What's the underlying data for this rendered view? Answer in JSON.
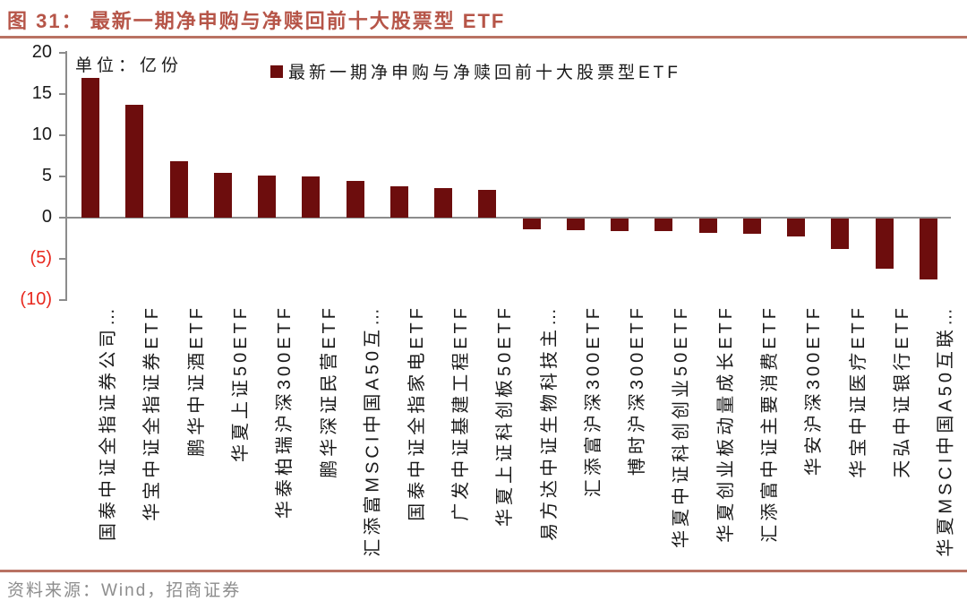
{
  "figure": {
    "title": "图 31： 最新一期净申购与净赎回前十大股票型 ETF",
    "source": "资料来源：Wind，招商证券"
  },
  "chart_data": {
    "type": "bar",
    "title": "最新一期净申购与净赎回前十大股票型 ETF",
    "unit_label": "单位：亿份",
    "legend": "最新一期净申购与净赎回前十大股票型ETF",
    "legend_position": "top",
    "grid": false,
    "ylim": [
      -10,
      20
    ],
    "yticks": [
      {
        "label": "20",
        "value": 20
      },
      {
        "label": "15",
        "value": 15
      },
      {
        "label": "10",
        "value": 10
      },
      {
        "label": "5",
        "value": 5
      },
      {
        "label": "0",
        "value": 0
      },
      {
        "label": "(5)",
        "value": -5
      },
      {
        "label": "(10)",
        "value": -10
      }
    ],
    "categories": [
      "国泰中证全指证券公司…",
      "华宝中证全指证券ETF",
      "鹏华中证酒ETF",
      "华夏上证50ETF",
      "华泰柏瑞沪深300ETF",
      "鹏华深证民营ETF",
      "汇添富MSCI中国A50互…",
      "国泰中证全指家电ETF",
      "广发中证基建工程ETF",
      "华夏上证科创板50ETF",
      "易方达中证生物科技主…",
      "汇添富沪深300ETF",
      "博时沪深300ETF",
      "华夏中证科创创业50ETF",
      "华夏创业板动量成长ETF",
      "汇添富中证主要消费ETF",
      "华安沪深300ETF",
      "华宝中证医疗ETF",
      "天弘中证银行ETF",
      "华夏MSCI中国A50互联…"
    ],
    "values": [
      17.0,
      13.7,
      6.9,
      5.4,
      5.1,
      5.0,
      4.5,
      3.8,
      3.6,
      3.4,
      -1.3,
      -1.4,
      -1.5,
      -1.5,
      -1.7,
      -1.9,
      -2.2,
      -3.7,
      -6.1,
      -7.4
    ],
    "colors": {
      "bar": "#6d0d0d",
      "title_text": "#b65548",
      "rule": "#b97263",
      "axis": "#8c8c8c",
      "tick_label": "#1a1a1a",
      "negative_tick_label": "#e8281e",
      "source_text": "#8d8d8d"
    }
  }
}
